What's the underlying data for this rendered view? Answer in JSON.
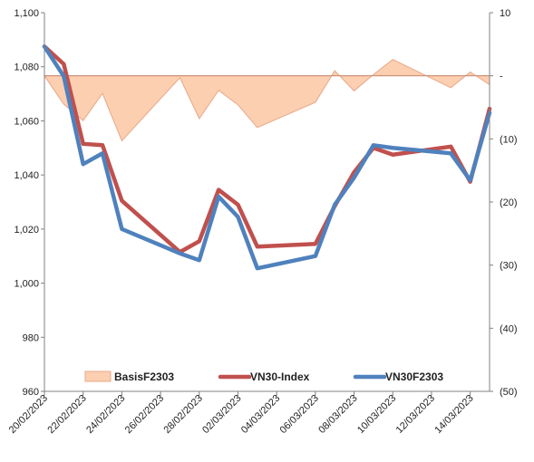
{
  "chart_data": {
    "type": "line",
    "x_dates": [
      "20/02/2023",
      "21/02/2023",
      "22/02/2023",
      "23/02/2023",
      "24/02/2023",
      "27/02/2023",
      "28/02/2023",
      "01/03/2023",
      "02/03/2023",
      "03/03/2023",
      "06/03/2023",
      "07/03/2023",
      "08/03/2023",
      "09/03/2023",
      "10/03/2023",
      "13/03/2023",
      "14/03/2023",
      "15/03/2023"
    ],
    "x_tick_labels": [
      "20/02/2023",
      "22/02/2023",
      "24/02/2023",
      "26/02/2023",
      "28/02/2023",
      "02/03/2023",
      "04/03/2023",
      "06/03/2023",
      "08/03/2023",
      "10/03/2023",
      "12/03/2023",
      "14/03/2023"
    ],
    "x_range": [
      "20/02/2023",
      "15/03/2023"
    ],
    "left_axis": {
      "ylim": [
        960,
        1100
      ],
      "ticks": [
        960,
        980,
        1000,
        1020,
        1040,
        1060,
        1080,
        1100
      ],
      "tick_labels": [
        "960",
        "980",
        "1,000",
        "1,020",
        "1,040",
        "1,060",
        "1,080",
        "1,100"
      ]
    },
    "right_axis": {
      "ylim": [
        -50,
        10
      ],
      "ticks": [
        10,
        0,
        -10,
        -20,
        -30,
        -40,
        -50
      ],
      "tick_labels": [
        "10",
        "-",
        "(10)",
        "(20)",
        "(30)",
        "(40)",
        "(50)"
      ]
    },
    "grid": false,
    "legend_position": "bottom",
    "series": [
      {
        "name": "BasisF2303",
        "kind": "area",
        "axis": "right",
        "color": "#fbcfb0",
        "line_color": "#e8a88a",
        "values": [
          0,
          -4.5,
          -7.1,
          -2.8,
          -10.3,
          -0.3,
          -6.8,
          -2.3,
          -4.6,
          -8.2,
          -4.2,
          0.8,
          -2.4,
          0.2,
          2.6,
          -1.9,
          0.6,
          -1.4
        ]
      },
      {
        "name": "VN30-Index",
        "kind": "line",
        "axis": "left",
        "color": "#c0504d",
        "values": [
          1087.5,
          1081,
          1051.5,
          1051,
          1030.5,
          1011.5,
          1015.5,
          1034.5,
          1029,
          1013.5,
          1014.5,
          1028.5,
          1041,
          1050,
          1047.5,
          1050.5,
          1037.5,
          1064.5
        ]
      },
      {
        "name": "VN30F2303",
        "kind": "line",
        "axis": "left",
        "color": "#4f81bd",
        "values": [
          1087.5,
          1076.5,
          1044,
          1048,
          1020,
          1011,
          1008.5,
          1032,
          1024.5,
          1005.5,
          1010,
          1029,
          1039,
          1051,
          1050,
          1048,
          1038,
          1063
        ]
      }
    ]
  }
}
